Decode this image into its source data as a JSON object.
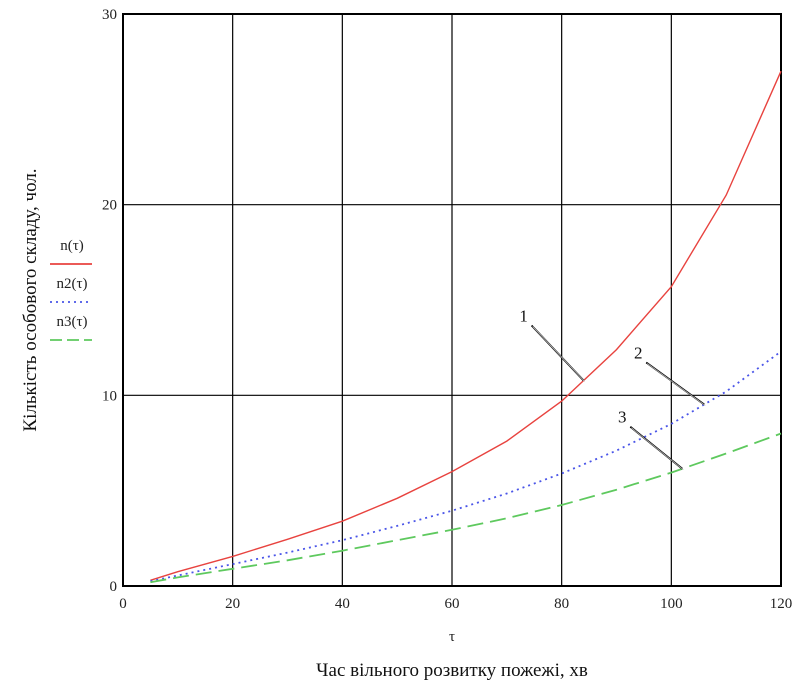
{
  "chart_data": {
    "type": "line",
    "title": "",
    "xlabel": "Час вільного розвитку пожежі, хв",
    "xvar": "τ",
    "ylabel": "Кількість особового складу, чол.",
    "xlim": [
      0,
      120
    ],
    "ylim": [
      0,
      30
    ],
    "x_ticks": [
      0,
      20,
      40,
      60,
      80,
      100,
      120
    ],
    "y_ticks": [
      0,
      10,
      20,
      30
    ],
    "grid": true,
    "legend_position": "left",
    "series": [
      {
        "name": "n(τ)",
        "color": "#e8433f",
        "style": "solid",
        "points": [
          [
            5,
            0.3
          ],
          [
            10,
            0.75
          ],
          [
            20,
            1.55
          ],
          [
            30,
            2.45
          ],
          [
            40,
            3.4
          ],
          [
            50,
            4.6
          ],
          [
            60,
            6.0
          ],
          [
            70,
            7.6
          ],
          [
            80,
            9.7
          ],
          [
            90,
            12.4
          ],
          [
            100,
            15.7
          ],
          [
            110,
            20.5
          ],
          [
            120,
            27.0
          ]
        ]
      },
      {
        "name": "n2(τ)",
        "color": "#4a55e8",
        "style": "dotted",
        "points": [
          [
            5,
            0.25
          ],
          [
            10,
            0.55
          ],
          [
            20,
            1.15
          ],
          [
            30,
            1.75
          ],
          [
            40,
            2.4
          ],
          [
            50,
            3.15
          ],
          [
            60,
            3.95
          ],
          [
            70,
            4.85
          ],
          [
            80,
            5.9
          ],
          [
            90,
            7.1
          ],
          [
            100,
            8.5
          ],
          [
            110,
            10.2
          ],
          [
            120,
            12.3
          ]
        ]
      },
      {
        "name": "n3(τ)",
        "color": "#5ec95e",
        "style": "dashed",
        "points": [
          [
            5,
            0.2
          ],
          [
            10,
            0.45
          ],
          [
            20,
            0.9
          ],
          [
            30,
            1.35
          ],
          [
            40,
            1.85
          ],
          [
            50,
            2.4
          ],
          [
            60,
            2.95
          ],
          [
            70,
            3.55
          ],
          [
            80,
            4.25
          ],
          [
            90,
            5.05
          ],
          [
            100,
            5.95
          ],
          [
            110,
            6.95
          ],
          [
            120,
            8.0
          ]
        ]
      }
    ],
    "annotations": [
      {
        "label": "1",
        "series": 0,
        "at_x": 84
      },
      {
        "label": "2",
        "series": 1,
        "at_x": 106
      },
      {
        "label": "3",
        "series": 2,
        "at_x": 102
      }
    ]
  }
}
